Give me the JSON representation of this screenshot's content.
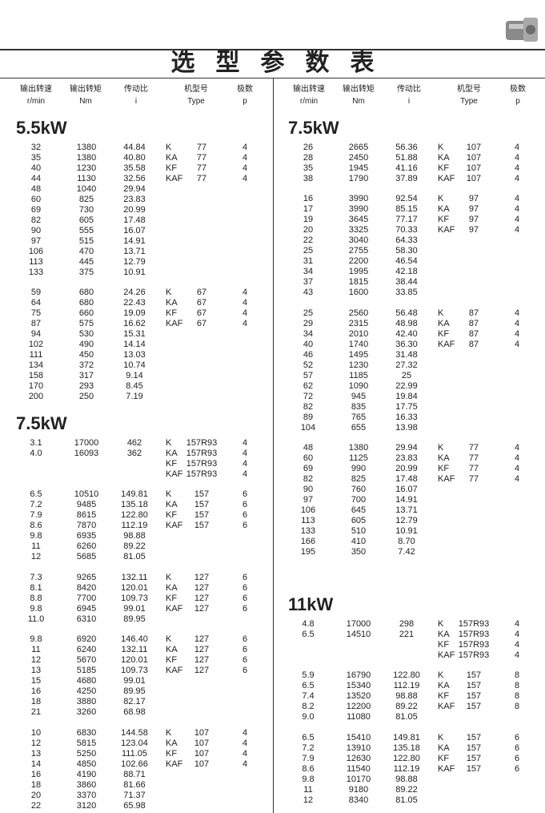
{
  "header": {
    "title": "选型参数表",
    "columns": [
      [
        "输出转速",
        "r/min"
      ],
      [
        "输出转矩",
        "Nm"
      ],
      [
        "传动比",
        "i"
      ],
      [
        "机型号",
        "Type"
      ],
      [
        "极数",
        "p"
      ]
    ]
  },
  "panels": [
    {
      "sections": [
        {
          "power": "5.5kW",
          "groups": [
            [
              [
                "32",
                "1380",
                "44.84",
                "K",
                "77",
                "4"
              ],
              [
                "35",
                "1380",
                "40.80",
                "KA",
                "77",
                "4"
              ],
              [
                "40",
                "1230",
                "35.58",
                "KF",
                "77",
                "4"
              ],
              [
                "44",
                "1130",
                "32.56",
                "KAF",
                "77",
                "4"
              ],
              [
                "48",
                "1040",
                "29.94"
              ],
              [
                "60",
                "825",
                "23.83"
              ],
              [
                "69",
                "730",
                "20.99"
              ],
              [
                "82",
                "605",
                "17.48"
              ],
              [
                "90",
                "555",
                "16.07"
              ],
              [
                "97",
                "515",
                "14.91"
              ],
              [
                "106",
                "470",
                "13.71"
              ],
              [
                "113",
                "445",
                "12.79"
              ],
              [
                "133",
                "375",
                "10.91"
              ]
            ],
            [
              [
                "59",
                "680",
                "24.26",
                "K",
                "67",
                "4"
              ],
              [
                "64",
                "680",
                "22.43",
                "KA",
                "67",
                "4"
              ],
              [
                "75",
                "660",
                "19.09",
                "KF",
                "67",
                "4"
              ],
              [
                "87",
                "575",
                "16.62",
                "KAF",
                "67",
                "4"
              ],
              [
                "94",
                "530",
                "15.31"
              ],
              [
                "102",
                "490",
                "14.14"
              ],
              [
                "111",
                "450",
                "13.03"
              ],
              [
                "134",
                "372",
                "10.74"
              ],
              [
                "158",
                "317",
                "9.14"
              ],
              [
                "170",
                "293",
                "8.45"
              ],
              [
                "200",
                "250",
                "7.19"
              ]
            ]
          ]
        },
        {
          "power": "7.5kW",
          "groups": [
            [
              [
                "3.1",
                "17000",
                "462",
                "K",
                "157R93",
                "4"
              ],
              [
                "4.0",
                "16093",
                "362",
                "KA",
                "157R93",
                "4"
              ],
              [
                null,
                null,
                null,
                "KF",
                "157R93",
                "4"
              ],
              [
                null,
                null,
                null,
                "KAF",
                "157R93",
                "4"
              ]
            ],
            [
              [
                "6.5",
                "10510",
                "149.81",
                "K",
                "157",
                "6"
              ],
              [
                "7.2",
                "9485",
                "135.18",
                "KA",
                "157",
                "6"
              ],
              [
                "7.9",
                "8615",
                "122.80",
                "KF",
                "157",
                "6"
              ],
              [
                "8.6",
                "7870",
                "112.19",
                "KAF",
                "157",
                "6"
              ],
              [
                "9.8",
                "6935",
                "98.88"
              ],
              [
                "11",
                "6260",
                "89.22"
              ],
              [
                "12",
                "5685",
                "81.05"
              ]
            ],
            [
              [
                "7.3",
                "9265",
                "132.11",
                "K",
                "127",
                "6"
              ],
              [
                "8.1",
                "8420",
                "120.01",
                "KA",
                "127",
                "6"
              ],
              [
                "8.8",
                "7700",
                "109.73",
                "KF",
                "127",
                "6"
              ],
              [
                "9.8",
                "6945",
                "99.01",
                "KAF",
                "127",
                "6"
              ],
              [
                "11.0",
                "6310",
                "89.95"
              ]
            ],
            [
              [
                "9.8",
                "6920",
                "146.40",
                "K",
                "127",
                "6"
              ],
              [
                "11",
                "6240",
                "132.11",
                "KA",
                "127",
                "6"
              ],
              [
                "12",
                "5670",
                "120.01",
                "KF",
                "127",
                "6"
              ],
              [
                "13",
                "5185",
                "109.73",
                "KAF",
                "127",
                "6"
              ],
              [
                "15",
                "4680",
                "99.01"
              ],
              [
                "16",
                "4250",
                "89.95"
              ],
              [
                "18",
                "3880",
                "82.17"
              ],
              [
                "21",
                "3260",
                "68.98"
              ]
            ],
            [
              [
                "10",
                "6830",
                "144.58",
                "K",
                "107",
                "4"
              ],
              [
                "12",
                "5815",
                "123.04",
                "KA",
                "107",
                "4"
              ],
              [
                "13",
                "5250",
                "111.05",
                "KF",
                "107",
                "4"
              ],
              [
                "14",
                "4850",
                "102.66",
                "KAF",
                "107",
                "4"
              ],
              [
                "16",
                "4190",
                "88.71"
              ],
              [
                "18",
                "3860",
                "81.66"
              ],
              [
                "20",
                "3370",
                "71.37"
              ],
              [
                "22",
                "3120",
                "65.98"
              ]
            ]
          ]
        }
      ]
    },
    {
      "sections": [
        {
          "power": "7.5kW",
          "groups": [
            [
              [
                "26",
                "2665",
                "56.36",
                "K",
                "107",
                "4"
              ],
              [
                "28",
                "2450",
                "51.88",
                "KA",
                "107",
                "4"
              ],
              [
                "35",
                "1945",
                "41.16",
                "KF",
                "107",
                "4"
              ],
              [
                "38",
                "1790",
                "37.89",
                "KAF",
                "107",
                "4"
              ]
            ],
            [
              [
                "16",
                "3990",
                "92.54",
                "K",
                "97",
                "4"
              ],
              [
                "17",
                "3990",
                "85.15",
                "KA",
                "97",
                "4"
              ],
              [
                "19",
                "3645",
                "77.17",
                "KF",
                "97",
                "4"
              ],
              [
                "20",
                "3325",
                "70.33",
                "KAF",
                "97",
                "4"
              ],
              [
                "22",
                "3040",
                "64.33"
              ],
              [
                "25",
                "2755",
                "58.30"
              ],
              [
                "31",
                "2200",
                "46.54"
              ],
              [
                "34",
                "1995",
                "42.18"
              ],
              [
                "37",
                "1815",
                "38.44"
              ],
              [
                "43",
                "1600",
                "33.85"
              ]
            ],
            [
              [
                "25",
                "2560",
                "56.48",
                "K",
                "87",
                "4"
              ],
              [
                "29",
                "2315",
                "48.98",
                "KA",
                "87",
                "4"
              ],
              [
                "34",
                "2010",
                "42.40",
                "KF",
                "87",
                "4"
              ],
              [
                "40",
                "1740",
                "36.30",
                "KAF",
                "87",
                "4"
              ],
              [
                "46",
                "1495",
                "31.48"
              ],
              [
                "52",
                "1230",
                "27.32"
              ],
              [
                "57",
                "1185",
                "25"
              ],
              [
                "62",
                "1090",
                "22.99"
              ],
              [
                "72",
                "945",
                "19.84"
              ],
              [
                "82",
                "835",
                "17.75"
              ],
              [
                "89",
                "765",
                "16.33"
              ],
              [
                "104",
                "655",
                "13.98"
              ]
            ],
            [
              [
                "48",
                "1380",
                "29.94",
                "K",
                "77",
                "4"
              ],
              [
                "60",
                "1125",
                "23.83",
                "KA",
                "77",
                "4"
              ],
              [
                "69",
                "990",
                "20.99",
                "KF",
                "77",
                "4"
              ],
              [
                "82",
                "825",
                "17.48",
                "KAF",
                "77",
                "4"
              ],
              [
                "90",
                "760",
                "16.07"
              ],
              [
                "97",
                "700",
                "14.91"
              ],
              [
                "106",
                "645",
                "13.71"
              ],
              [
                "113",
                "605",
                "12.79"
              ],
              [
                "133",
                "510",
                "10.91"
              ],
              [
                "166",
                "410",
                "8.70"
              ],
              [
                "195",
                "350",
                "7.42"
              ]
            ]
          ]
        },
        {
          "power": "11kW",
          "groups": [
            [
              [
                "4.8",
                "17000",
                "298",
                "K",
                "157R93",
                "4"
              ],
              [
                "6.5",
                "14510",
                "221",
                "KA",
                "157R93",
                "4"
              ],
              [
                null,
                null,
                null,
                "KF",
                "157R93",
                "4"
              ],
              [
                null,
                null,
                null,
                "KAF",
                "157R93",
                "4"
              ]
            ],
            [
              [
                "5.9",
                "16790",
                "122.80",
                "K",
                "157",
                "8"
              ],
              [
                "6.5",
                "15340",
                "112.19",
                "KA",
                "157",
                "8"
              ],
              [
                "7.4",
                "13520",
                "98.88",
                "KF",
                "157",
                "8"
              ],
              [
                "8.2",
                "12200",
                "89.22",
                "KAF",
                "157",
                "8"
              ],
              [
                "9.0",
                "11080",
                "81.05"
              ]
            ],
            [
              [
                "6.5",
                "15410",
                "149.81",
                "K",
                "157",
                "6"
              ],
              [
                "7.2",
                "13910",
                "135.18",
                "KA",
                "157",
                "6"
              ],
              [
                "7.9",
                "12630",
                "122.80",
                "KF",
                "157",
                "6"
              ],
              [
                "8.6",
                "11540",
                "112.19",
                "KAF",
                "157",
                "6"
              ],
              [
                "9.8",
                "10170",
                "98.88"
              ],
              [
                "11",
                "9180",
                "89.22"
              ],
              [
                "12",
                "8340",
                "81.05"
              ]
            ]
          ]
        }
      ]
    }
  ]
}
